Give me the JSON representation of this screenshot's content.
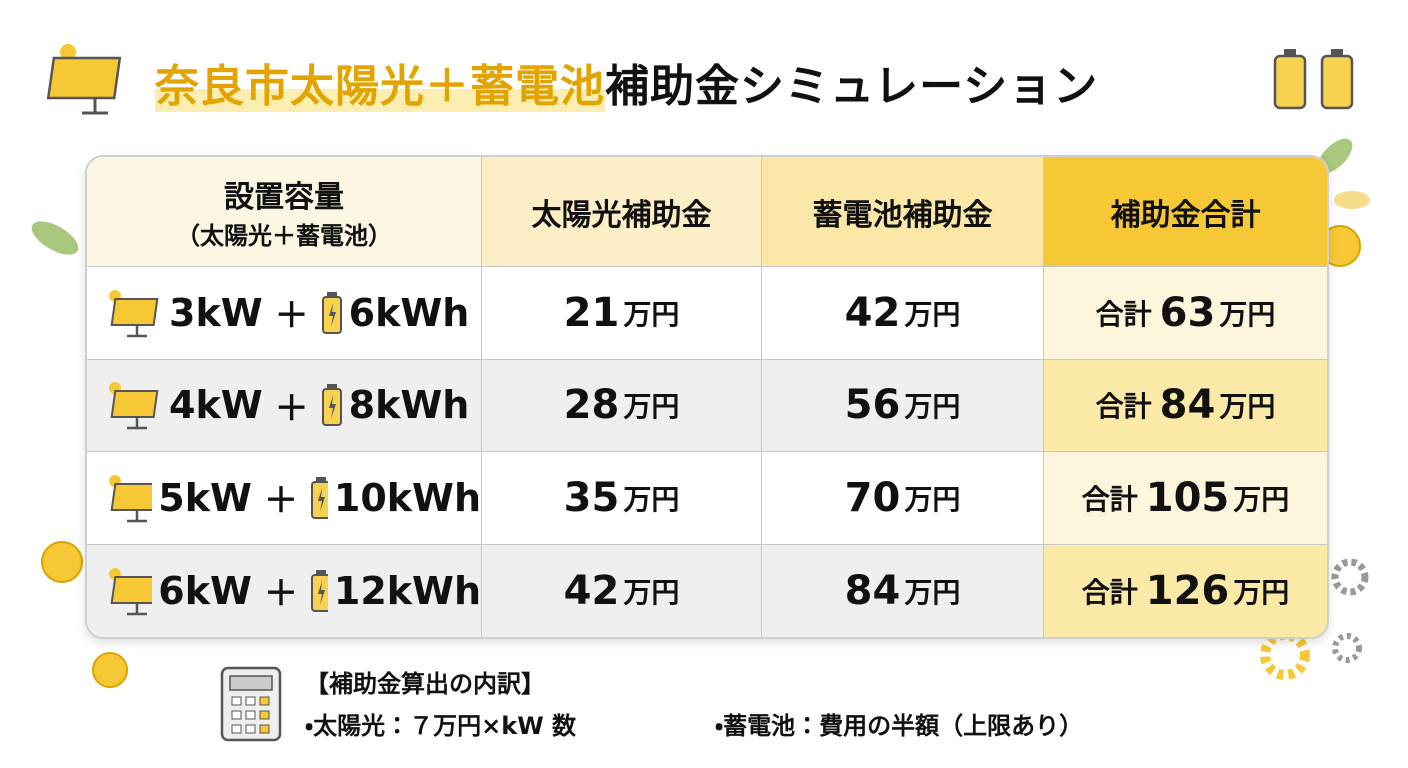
{
  "title": {
    "highlight": "奈良市太陽光＋蓄電池",
    "rest": "補助金シミュレーション"
  },
  "table": {
    "headers": [
      [
        "設置容量",
        "（太陽光＋蓄電池）"
      ],
      [
        "太陽光補助金"
      ],
      [
        "蓄電池補助金"
      ],
      [
        "補助金合計"
      ]
    ],
    "plus": "＋",
    "unit": "万円",
    "total_prefix": "合計",
    "rows": [
      {
        "solar": "3kW",
        "battery": "6kWh",
        "solar_subsidy": 21,
        "battery_subsidy": 42,
        "total": 63
      },
      {
        "solar": "4kW",
        "battery": "8kWh",
        "solar_subsidy": 28,
        "battery_subsidy": 56,
        "total": 84
      },
      {
        "solar": "5kW",
        "battery": "10kWh",
        "solar_subsidy": 35,
        "battery_subsidy": 70,
        "total": 105
      },
      {
        "solar": "6kW",
        "battery": "12kWh",
        "solar_subsidy": 42,
        "battery_subsidy": 84,
        "total": 126
      }
    ]
  },
  "footer": {
    "heading": "【補助金算出の内訳】",
    "items": [
      "・太陽光：７万円×kW 数",
      "・蓄電池：費用の半額（上限あり）"
    ]
  }
}
